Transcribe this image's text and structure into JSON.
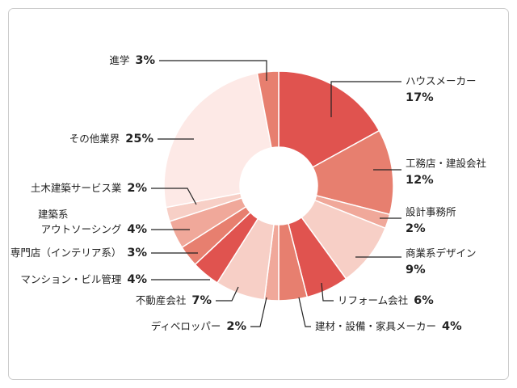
{
  "chart_data": {
    "type": "donut",
    "categories": [
      "ハウスメーカー",
      "工務店・建設会社",
      "設計事務所",
      "商業系デザイン",
      "リフォーム会社",
      "建材・設備・家具メーカー",
      "ディベロッパー",
      "不動産会社",
      "マンション・ビル管理",
      "専門店（インテリア系）",
      [
        "建築系",
        "アウトソーシング"
      ],
      "土木建築サービス業",
      "その他業界",
      "進学"
    ],
    "values": [
      17,
      12,
      2,
      9,
      6,
      4,
      2,
      7,
      4,
      3,
      4,
      2,
      25,
      3
    ],
    "value_labels": [
      "17%",
      "12%",
      "2%",
      "9%",
      "6%",
      "4%",
      "2%",
      "7%",
      "4%",
      "3%",
      "4%",
      "2%",
      "25%",
      "3%"
    ],
    "colors": [
      "#e0534f",
      "#e77f6f",
      "#f0a89a",
      "#f7cfc6",
      "#e0534f",
      "#e77f6f",
      "#f0a89a",
      "#f7cfc6",
      "#e0534f",
      "#e77f6f",
      "#f0a89a",
      "#f7cfc6",
      "#fde9e6",
      "#e77f6f"
    ]
  }
}
